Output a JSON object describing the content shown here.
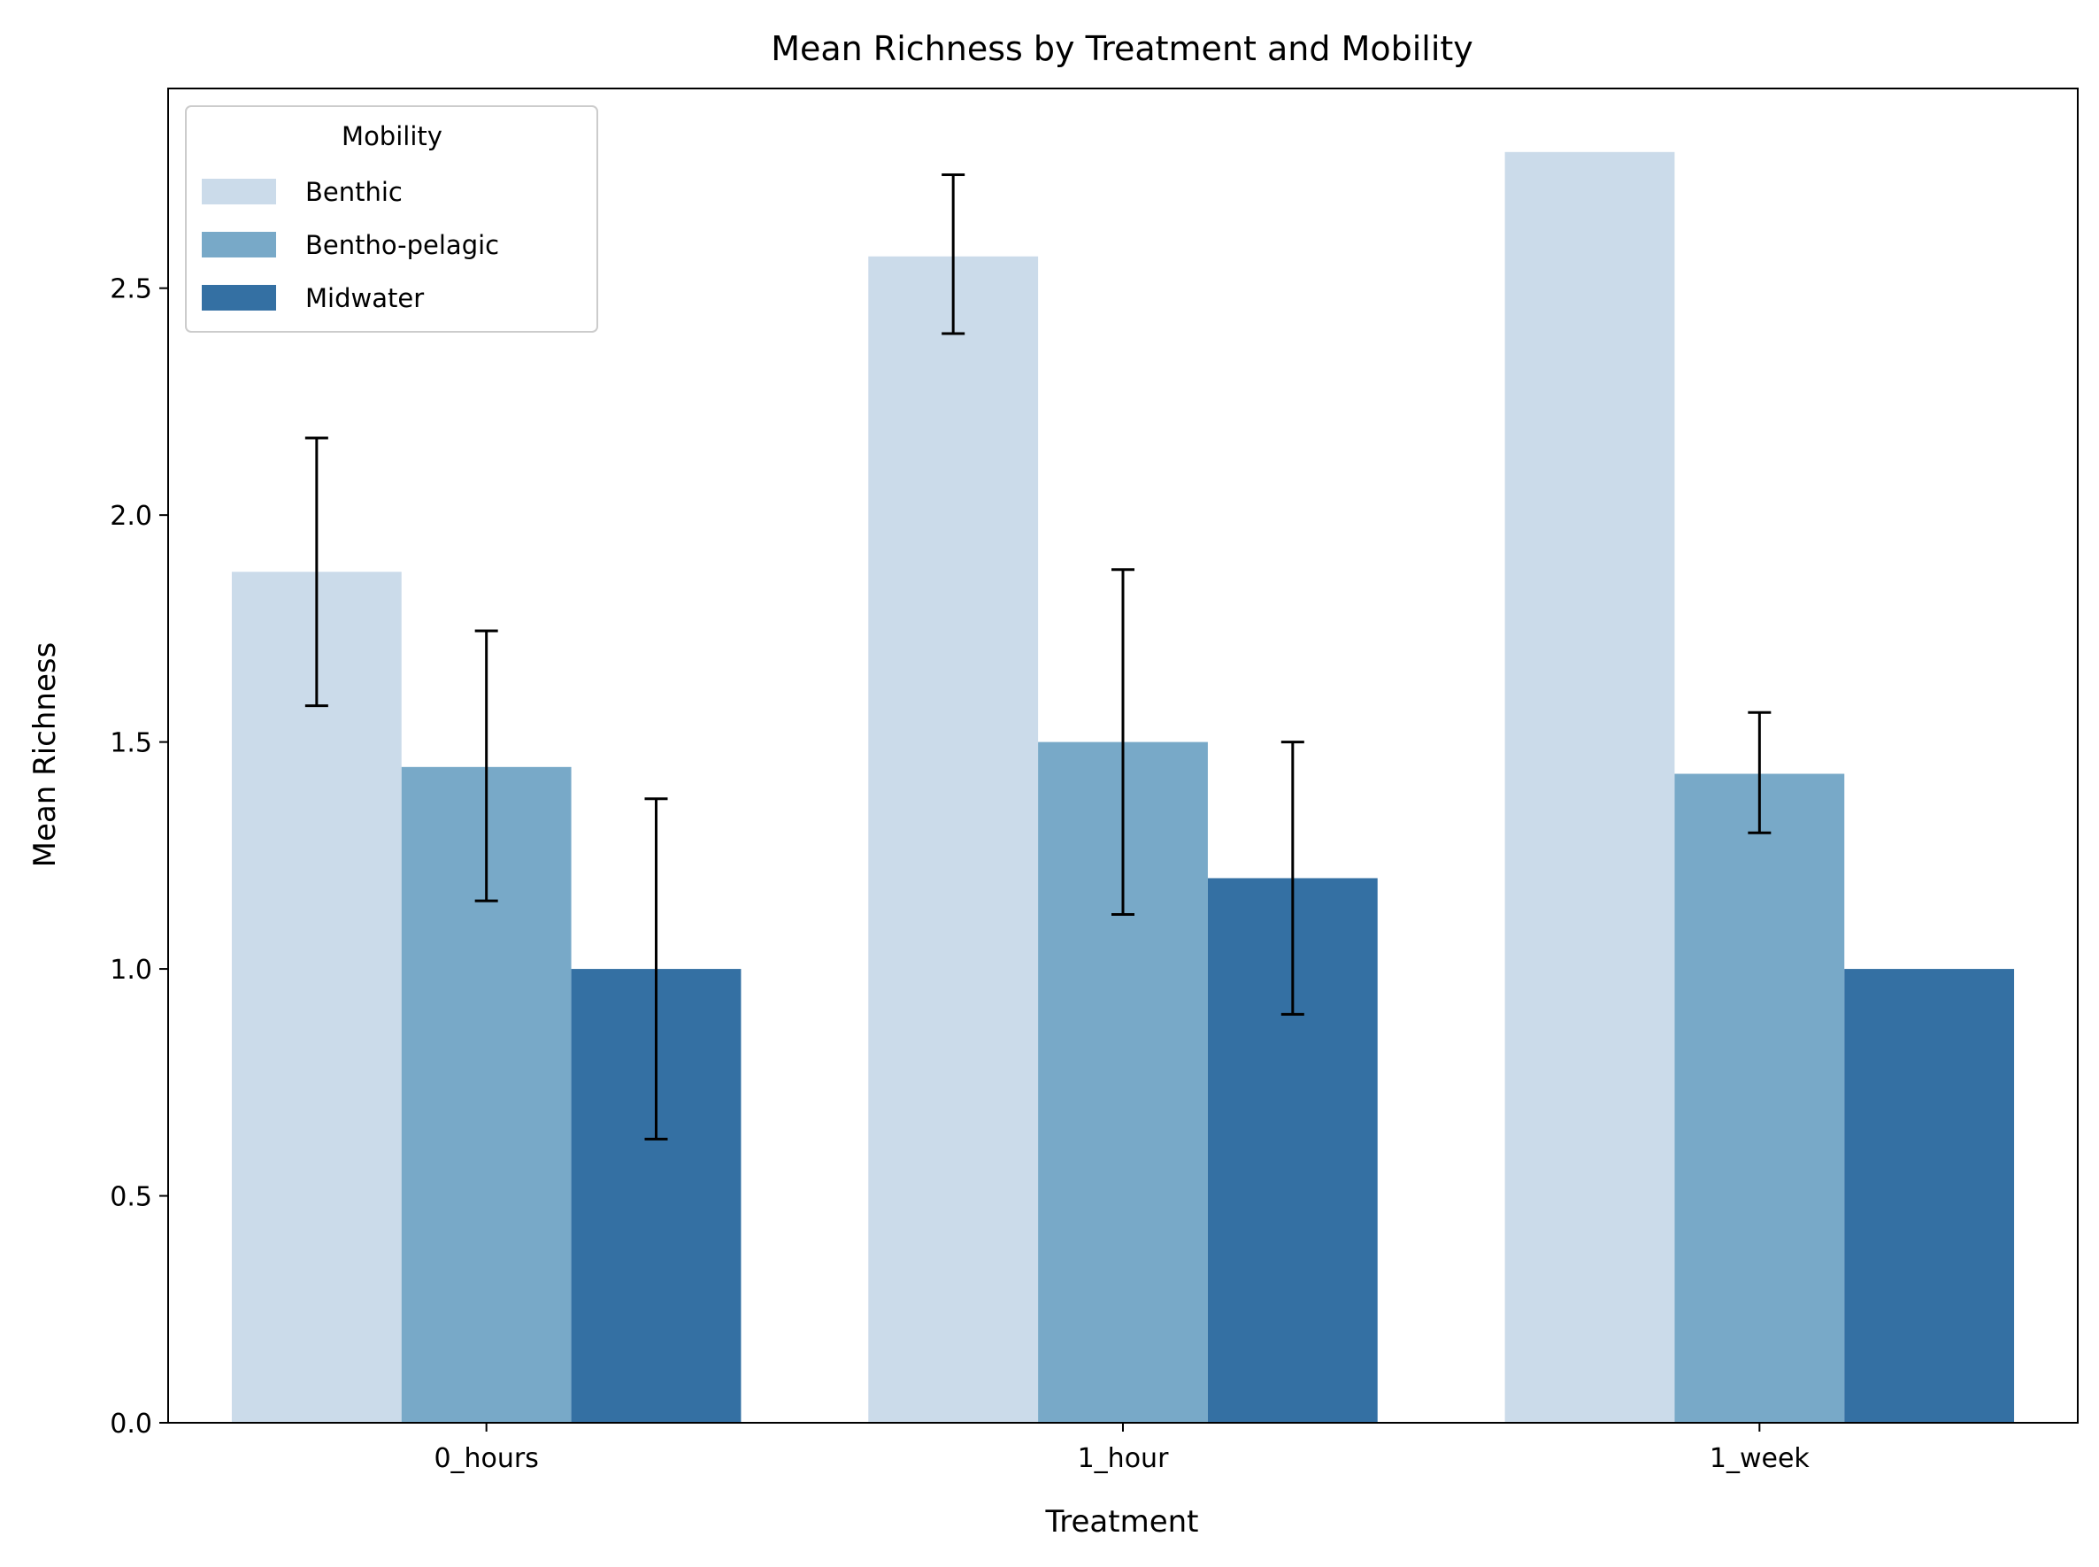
{
  "chart_data": {
    "type": "bar",
    "title": "Mean Richness by Treatment and Mobility",
    "xlabel": "Treatment",
    "ylabel": "Mean Richness",
    "categories": [
      "0_hours",
      "1_hour",
      "1_week"
    ],
    "ylim": [
      0,
      2.94
    ],
    "yticks": [
      0.0,
      0.5,
      1.0,
      1.5,
      2.0,
      2.5
    ],
    "ytick_labels": [
      "0.0",
      "0.5",
      "1.0",
      "1.5",
      "2.0",
      "2.5"
    ],
    "grid": false,
    "legend": {
      "title": "Mobility",
      "position": "top-left"
    },
    "series": [
      {
        "name": "Benthic",
        "color": "#cbdbea",
        "values": [
          1.875,
          2.57,
          2.8
        ],
        "error_low": [
          1.58,
          2.4,
          null
        ],
        "error_high": [
          2.17,
          2.75,
          null
        ]
      },
      {
        "name": "Bentho-pelagic",
        "color": "#78a9c8",
        "values": [
          1.445,
          1.5,
          1.43
        ],
        "error_low": [
          1.15,
          1.12,
          1.3
        ],
        "error_high": [
          1.745,
          1.88,
          1.565
        ]
      },
      {
        "name": "Midwater",
        "color": "#3470a3",
        "values": [
          1.0,
          1.2,
          1.0
        ],
        "error_low": [
          0.625,
          0.9,
          null
        ],
        "error_high": [
          1.375,
          1.5,
          null
        ]
      }
    ]
  }
}
